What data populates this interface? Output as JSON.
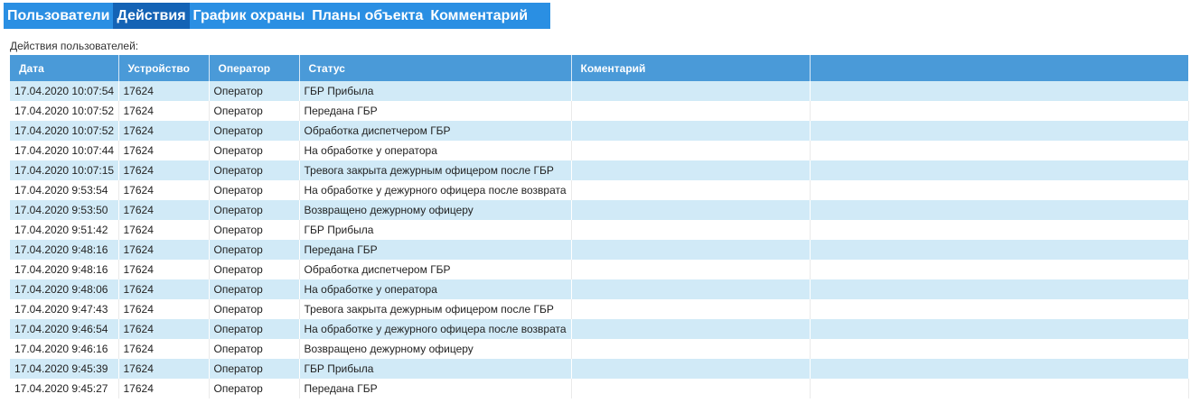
{
  "tabs": [
    {
      "label": "Пользователи"
    },
    {
      "label": "Действия"
    },
    {
      "label": "График охраны"
    },
    {
      "label": "Планы объекта"
    },
    {
      "label": "Комментарий"
    }
  ],
  "active_tab_index": 1,
  "caption": "Действия пользователей:",
  "table": {
    "headers": [
      "Дата",
      "Устройство",
      "Оператор",
      "Статус",
      "Коментарий",
      ""
    ],
    "rows": [
      [
        "17.04.2020 10:07:54",
        "17624",
        "Оператор",
        "ГБР Прибыла",
        "",
        ""
      ],
      [
        "17.04.2020 10:07:52",
        "17624",
        "Оператор",
        "Передана ГБР",
        "",
        ""
      ],
      [
        "17.04.2020 10:07:52",
        "17624",
        "Оператор",
        "Обработка диспетчером ГБР",
        "",
        ""
      ],
      [
        "17.04.2020 10:07:44",
        "17624",
        "Оператор",
        "На обработке у оператора",
        "",
        ""
      ],
      [
        "17.04.2020 10:07:15",
        "17624",
        "Оператор",
        "Тревога закрыта дежурным офицером после ГБР",
        "",
        ""
      ],
      [
        "17.04.2020 9:53:54",
        "17624",
        "Оператор",
        "На обработке у дежурного офицера после возврата",
        "",
        ""
      ],
      [
        "17.04.2020 9:53:50",
        "17624",
        "Оператор",
        "Возвращено дежурному офицеру",
        "",
        ""
      ],
      [
        "17.04.2020 9:51:42",
        "17624",
        "Оператор",
        "ГБР Прибыла",
        "",
        ""
      ],
      [
        "17.04.2020 9:48:16",
        "17624",
        "Оператор",
        "Передана ГБР",
        "",
        ""
      ],
      [
        "17.04.2020 9:48:16",
        "17624",
        "Оператор",
        "Обработка диспетчером ГБР",
        "",
        ""
      ],
      [
        "17.04.2020 9:48:06",
        "17624",
        "Оператор",
        "На обработке у оператора",
        "",
        ""
      ],
      [
        "17.04.2020 9:47:43",
        "17624",
        "Оператор",
        "Тревога закрыта дежурным офицером после ГБР",
        "",
        ""
      ],
      [
        "17.04.2020 9:46:54",
        "17624",
        "Оператор",
        "На обработке у дежурного офицера после возврата",
        "",
        ""
      ],
      [
        "17.04.2020 9:46:16",
        "17624",
        "Оператор",
        "Возвращено дежурному офицеру",
        "",
        ""
      ],
      [
        "17.04.2020 9:45:39",
        "17624",
        "Оператор",
        "ГБР Прибыла",
        "",
        ""
      ],
      [
        "17.04.2020 9:45:27",
        "17624",
        "Оператор",
        "Передана ГБР",
        "",
        ""
      ]
    ]
  }
}
